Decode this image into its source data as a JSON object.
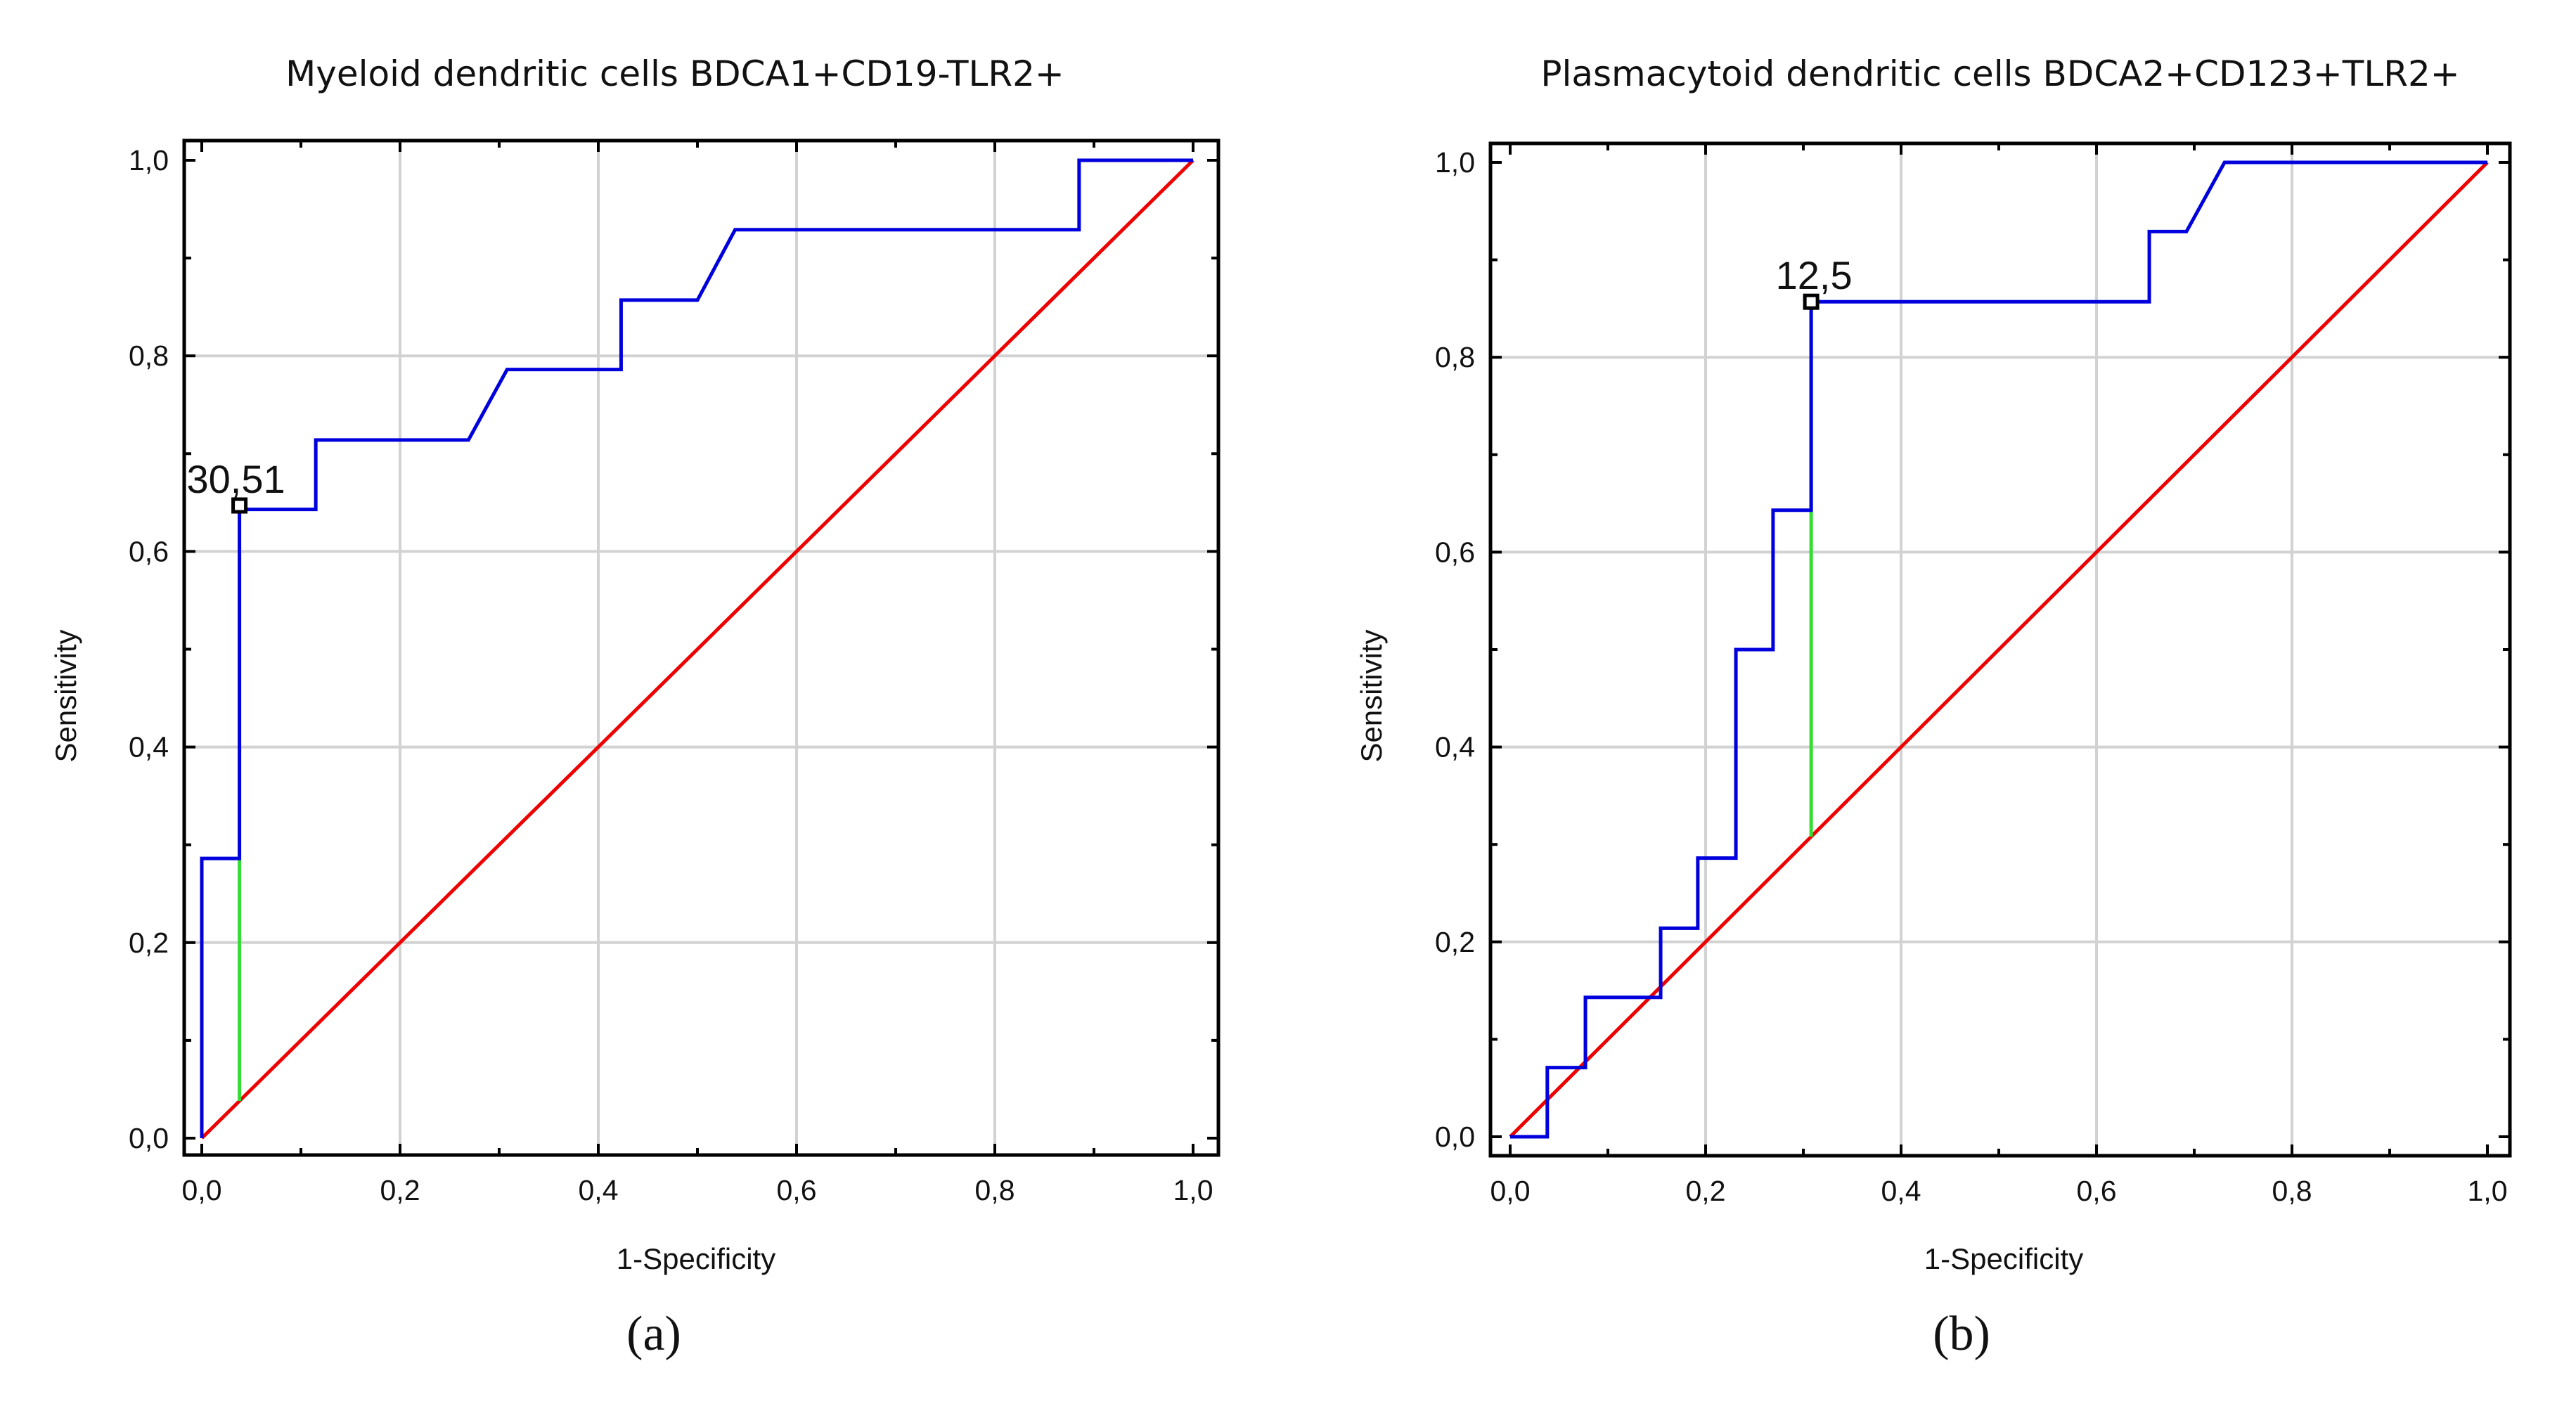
{
  "colors": {
    "roc": "#0000dd",
    "reference": "#ee0000",
    "youden": "#33dd33",
    "grid": "#d2d2d2",
    "axis": "#000000"
  },
  "chart_data": [
    {
      "type": "line",
      "panel_label": "(a)",
      "title": "Myeloid dendritic cells BDCA1+CD19-TLR2+",
      "xlabel": "1-Specificity",
      "ylabel": "Sensitivity",
      "xlim": [
        0,
        1
      ],
      "ylim": [
        0,
        1
      ],
      "grid": true,
      "xticks": [
        "0,0",
        "0,2",
        "0,4",
        "0,6",
        "0,8",
        "1,0"
      ],
      "yticks": [
        "0,0",
        "0,2",
        "0,4",
        "0,6",
        "0,8",
        "1,0"
      ],
      "series": [
        {
          "name": "ROC curve",
          "x": [
            0,
            0,
            0.038,
            0.038,
            0.115,
            0.115,
            0.269,
            0.308,
            0.423,
            0.423,
            0.5,
            0.538,
            0.885,
            0.885,
            1.0
          ],
          "y": [
            0,
            0.286,
            0.286,
            0.643,
            0.643,
            0.714,
            0.714,
            0.786,
            0.786,
            0.857,
            0.857,
            0.929,
            0.929,
            1.0,
            1.0
          ]
        },
        {
          "name": "Reference line",
          "x": [
            0,
            1
          ],
          "y": [
            0,
            1
          ]
        }
      ],
      "cutoff": {
        "label": "30,51",
        "x": 0.038,
        "y": 0.647,
        "y_reference": 0.038
      }
    },
    {
      "type": "line",
      "panel_label": "(b)",
      "title": "Plasmacytoid dendritic cells BDCA2+CD123+TLR2+",
      "xlabel": "1-Specificity",
      "ylabel": "Sensitivity",
      "xlim": [
        0,
        1
      ],
      "ylim": [
        0,
        1
      ],
      "grid": true,
      "xticks": [
        "0,0",
        "0,2",
        "0,4",
        "0,6",
        "0,8",
        "1,0"
      ],
      "yticks": [
        "0,0",
        "0,2",
        "0,4",
        "0,6",
        "0,8",
        "1,0"
      ],
      "series": [
        {
          "name": "ROC curve",
          "x": [
            0,
            0.038,
            0.038,
            0.077,
            0.077,
            0.154,
            0.154,
            0.192,
            0.192,
            0.231,
            0.231,
            0.269,
            0.269,
            0.308,
            0.308,
            0.654,
            0.654,
            0.692,
            0.731,
            1.0
          ],
          "y": [
            0,
            0,
            0.071,
            0.071,
            0.143,
            0.143,
            0.214,
            0.214,
            0.286,
            0.286,
            0.5,
            0.5,
            0.643,
            0.643,
            0.857,
            0.857,
            0.929,
            0.929,
            1.0,
            1.0
          ]
        },
        {
          "name": "Reference line",
          "x": [
            0,
            1
          ],
          "y": [
            0,
            1
          ]
        }
      ],
      "cutoff": {
        "label": "12,5",
        "x": 0.308,
        "y": 0.857,
        "y_reference": 0.308
      }
    }
  ]
}
